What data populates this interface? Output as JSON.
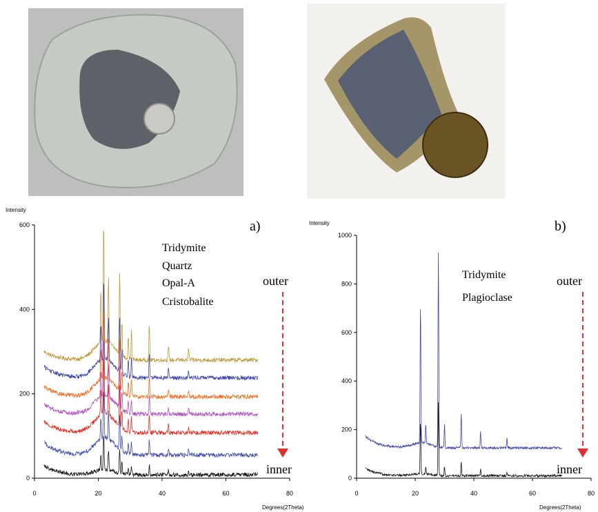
{
  "photos": [
    {
      "name": "rock-sample-a",
      "description": "",
      "colors": {
        "rim": "#c5cbc2",
        "core": "#5c6268",
        "coin": "#c9c9c6"
      }
    },
    {
      "name": "rock-sample-b",
      "description": "",
      "colors": {
        "rim": "#a49668",
        "core": "#5a6173",
        "coin": "#6b5424"
      }
    }
  ],
  "chart_data": [
    {
      "type": "line",
      "panel_label": "a)",
      "ylabel": "Intensity",
      "xlabel": "Degrees(2Theta)",
      "xlim": [
        0,
        80
      ],
      "ylim": [
        0,
        600
      ],
      "xticks": [
        "0",
        "20",
        "40",
        "60",
        "80"
      ],
      "yticks": [
        "0",
        "200",
        "400",
        "600"
      ],
      "legend_labels": [
        "Tridymite",
        "Quartz",
        "Opal-A",
        "Cristobalite"
      ],
      "direction": {
        "top": "outer",
        "bottom": "inner"
      },
      "x_range": [
        3,
        70
      ],
      "peaks": [
        {
          "x": 20.8,
          "h": 0.45
        },
        {
          "x": 21.7,
          "h": 1.0
        },
        {
          "x": 23.2,
          "h": 0.55
        },
        {
          "x": 26.7,
          "h": 0.7
        },
        {
          "x": 27.4,
          "h": 0.3
        },
        {
          "x": 29.4,
          "h": 0.2
        },
        {
          "x": 30.4,
          "h": 0.25
        },
        {
          "x": 36.0,
          "h": 0.3
        },
        {
          "x": 42.0,
          "h": 0.12
        },
        {
          "x": 48.3,
          "h": 0.1
        }
      ],
      "series": [
        {
          "color": "#c29a3c",
          "baseline": 280,
          "start": 300,
          "peak_scale": 280,
          "hump": 45
        },
        {
          "color": "#3c44b0",
          "baseline": 238,
          "start": 265,
          "peak_scale": 190,
          "hump": 45
        },
        {
          "color": "#f26a1b",
          "baseline": 193,
          "start": 218,
          "peak_scale": 170,
          "hump": 45
        },
        {
          "color": "#b04ec2",
          "baseline": 152,
          "start": 175,
          "peak_scale": 140,
          "hump": 45
        },
        {
          "color": "#e8281c",
          "baseline": 108,
          "start": 135,
          "peak_scale": 140,
          "hump": 45
        },
        {
          "color": "#3a48b4",
          "baseline": 55,
          "start": 85,
          "peak_scale": 120,
          "hump": 40
        },
        {
          "color": "#111111",
          "baseline": 8,
          "start": 30,
          "peak_scale": 85,
          "hump": 12
        }
      ]
    },
    {
      "type": "line",
      "panel_label": "b)",
      "ylabel": "Intensity",
      "xlabel": "Degrees(2Theta)",
      "xlim": [
        0,
        80
      ],
      "ylim": [
        0,
        1000
      ],
      "xticks": [
        "0",
        "20",
        "40",
        "60",
        "80"
      ],
      "yticks": [
        "0",
        "200",
        "400",
        "600",
        "800",
        "1000"
      ],
      "legend_labels": [
        "Tridymite",
        "Plagioclase"
      ],
      "direction": {
        "top": "outer",
        "bottom": "inner"
      },
      "x_range": [
        3,
        70
      ],
      "peaks": [
        {
          "x": 21.8,
          "h": 0.72
        },
        {
          "x": 23.6,
          "h": 0.1
        },
        {
          "x": 27.9,
          "h": 1.0
        },
        {
          "x": 30.0,
          "h": 0.12
        },
        {
          "x": 35.7,
          "h": 0.18
        },
        {
          "x": 42.3,
          "h": 0.08
        },
        {
          "x": 51.3,
          "h": 0.05
        }
      ],
      "series": [
        {
          "color": "#3c44b0",
          "baseline": 125,
          "start": 175,
          "peak_scale": 800,
          "hump": 20
        },
        {
          "color": "#111111",
          "baseline": 10,
          "start": 40,
          "peak_scale": 300,
          "hump": 8
        }
      ]
    }
  ]
}
